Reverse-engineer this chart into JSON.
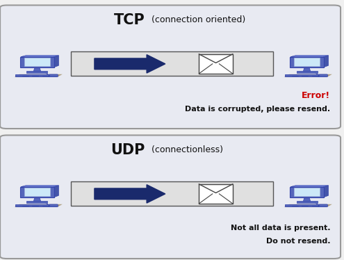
{
  "bg_color": "#f0f0f0",
  "panel_bg": "#e8eaf2",
  "panel_border": "#999999",
  "tcp_title_bold": "TCP",
  "tcp_title_normal": " (connection oriented)",
  "udp_title_bold": "UDP",
  "udp_title_normal": " (connectionless)",
  "error_text": "Error!",
  "error_color": "#cc0000",
  "tcp_subtext": "Data is corrupted, please resend.",
  "udp_subtext1": "Not all data is present.",
  "udp_subtext2": "Do not resend.",
  "arrow_color": "#1a2a6c",
  "channel_bg": "#e0e0e0",
  "channel_border": "#555555",
  "envelope_color": "#ffffff",
  "envelope_border": "#444444",
  "comp_monitor_face": "#5566bb",
  "comp_monitor_edge": "#3344aa",
  "comp_screen": "#cce8f8",
  "comp_base": "#6677cc",
  "comp_shadow": "#b0a080"
}
